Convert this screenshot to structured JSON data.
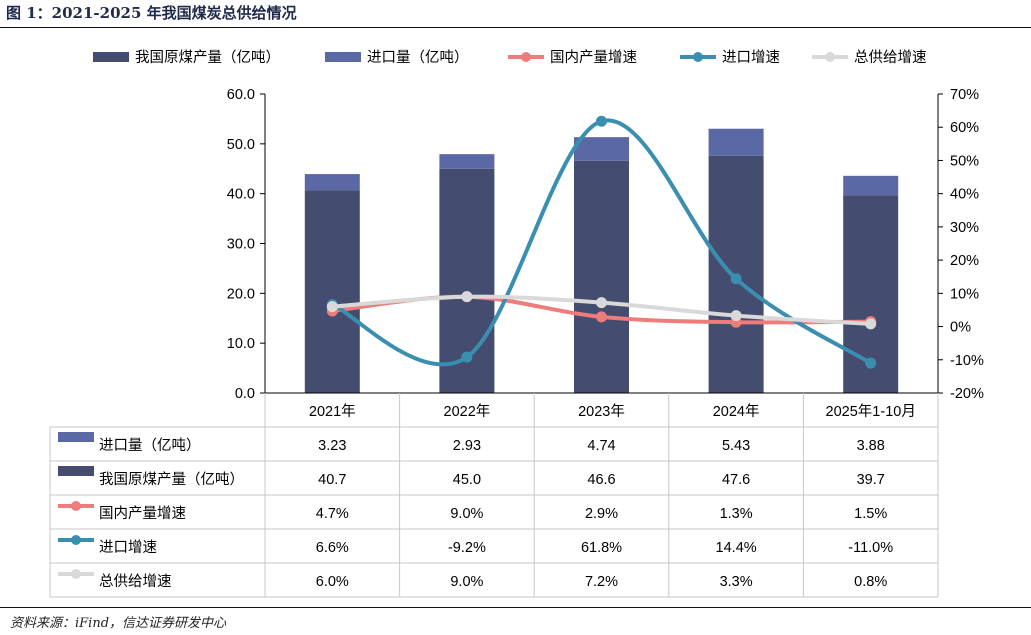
{
  "header": {
    "title": "图 1：2021-2025 年我国煤炭总供给情况"
  },
  "footer": {
    "source": "资料来源：iFind，信达证券研发中心"
  },
  "chart_data": {
    "type": "bar",
    "categories": [
      "2021年",
      "2022年",
      "2023年",
      "2024年",
      "2025年1-10月"
    ],
    "left_axis": {
      "min": 0,
      "max": 60,
      "ticks": [
        "0.0",
        "10.0",
        "20.0",
        "30.0",
        "40.0",
        "50.0",
        "60.0"
      ]
    },
    "right_axis": {
      "min": -20,
      "max": 70,
      "ticks": [
        "-20%",
        "-10%",
        "0%",
        "10%",
        "20%",
        "30%",
        "40%",
        "50%",
        "60%",
        "70%"
      ]
    },
    "series": [
      {
        "name": "我国原煤产量（亿吨）",
        "kind": "bar-stack",
        "axis": "left",
        "color": "#444c6f",
        "values": [
          40.7,
          45.0,
          46.6,
          47.6,
          39.7
        ],
        "labels": [
          "40.7",
          "45.0",
          "46.6",
          "47.6",
          "39.7"
        ]
      },
      {
        "name": "进口量（亿吨）",
        "kind": "bar-stack",
        "axis": "left",
        "color": "#5b68a6",
        "values": [
          3.23,
          2.93,
          4.74,
          5.43,
          3.88
        ],
        "labels": [
          "3.23",
          "2.93",
          "4.74",
          "5.43",
          "3.88"
        ]
      },
      {
        "name": "国内产量增速",
        "kind": "line",
        "axis": "right",
        "color": "#f07b7b",
        "values": [
          4.7,
          9.0,
          2.9,
          1.3,
          1.5
        ],
        "labels": [
          "4.7%",
          "9.0%",
          "2.9%",
          "1.3%",
          "1.5%"
        ]
      },
      {
        "name": "进口增速",
        "kind": "line",
        "axis": "right",
        "color": "#3a8fb0",
        "values": [
          6.6,
          -9.2,
          61.8,
          14.4,
          -11.0
        ],
        "labels": [
          "6.6%",
          "-9.2%",
          "61.8%",
          "14.4%",
          "-11.0%"
        ]
      },
      {
        "name": "总供给增速",
        "kind": "line",
        "axis": "right",
        "color": "#d9d9d9",
        "values": [
          6.0,
          9.0,
          7.2,
          3.3,
          0.8
        ],
        "labels": [
          "6.0%",
          "9.0%",
          "7.2%",
          "3.3%",
          "0.8%"
        ]
      }
    ],
    "legend_order": [
      0,
      1,
      2,
      3,
      4
    ],
    "table_order": [
      1,
      0,
      2,
      3,
      4
    ],
    "legend_position": "top",
    "grid": false
  }
}
